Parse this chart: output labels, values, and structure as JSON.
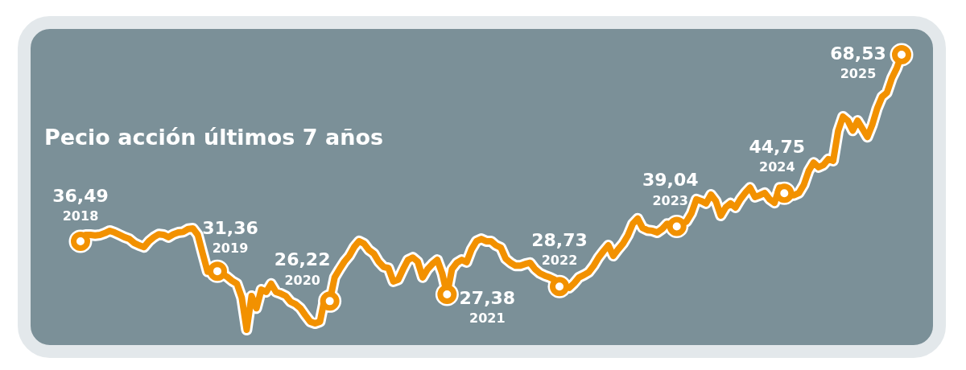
{
  "chart_data": {
    "type": "line",
    "title": "Pecio acción últimos 7 años",
    "tick_labels": false,
    "categories": [
      null,
      null,
      null,
      null,
      null,
      null,
      null,
      null,
      null,
      null,
      null,
      null,
      null,
      null,
      null,
      null,
      null,
      null,
      null,
      null,
      null,
      null,
      null,
      null,
      null,
      null,
      null,
      null,
      null,
      null,
      null,
      null,
      null,
      null,
      null,
      null,
      null,
      null,
      null,
      null,
      null,
      null,
      null,
      null,
      null,
      null,
      null,
      null,
      null,
      null,
      null,
      null,
      null,
      null,
      null,
      null,
      null,
      null,
      null,
      null,
      null,
      null,
      null,
      null,
      null,
      null,
      null,
      null,
      null,
      null,
      null,
      null,
      null,
      null,
      null,
      null,
      null,
      null,
      null,
      null,
      null,
      null,
      null,
      null,
      null,
      null,
      null,
      null,
      null,
      null,
      null,
      null,
      null,
      null,
      null,
      null,
      null,
      null,
      null,
      null,
      null,
      null,
      null,
      null,
      null,
      null,
      null,
      null,
      null,
      null,
      null,
      null,
      null,
      null,
      null,
      null,
      null,
      null,
      null,
      null,
      null,
      null,
      null,
      null,
      null,
      null,
      null,
      null,
      null,
      null,
      null,
      null,
      null,
      null,
      null,
      null,
      null,
      null,
      null,
      null,
      null,
      null,
      null,
      null,
      null,
      null,
      null,
      null,
      null,
      null,
      null,
      null,
      null,
      null,
      null,
      null,
      null,
      null,
      null,
      null,
      null,
      null,
      null,
      null,
      null,
      null,
      null,
      null,
      null
    ],
    "series": [
      {
        "color": "#f29100",
        "values": [
          36.49,
          37.6,
          37.6,
          37.5,
          37.6,
          37.9,
          38.3,
          38.0,
          37.6,
          37.2,
          36.9,
          36.2,
          35.8,
          35.5,
          36.5,
          37.2,
          37.7,
          37.6,
          37.2,
          37.7,
          38.0,
          38.1,
          38.6,
          38.7,
          37.6,
          34.4,
          31.3,
          31.9,
          31.36,
          30.9,
          30.4,
          29.7,
          29.2,
          26.8,
          21.3,
          27.1,
          25.0,
          28.2,
          27.8,
          29.2,
          27.8,
          27.5,
          27.1,
          26.1,
          25.7,
          25.0,
          23.8,
          22.7,
          22.4,
          22.7,
          26.8,
          26.22,
          30.3,
          31.7,
          33.0,
          34.0,
          35.5,
          36.5,
          36.1,
          35.0,
          34.4,
          33.0,
          32.1,
          31.9,
          29.6,
          29.9,
          31.7,
          33.3,
          33.7,
          33.0,
          30.3,
          31.7,
          32.6,
          33.3,
          31.0,
          27.38,
          31.7,
          32.8,
          33.3,
          32.9,
          35.1,
          36.5,
          36.9,
          36.5,
          36.5,
          35.8,
          35.4,
          33.5,
          32.8,
          32.3,
          32.3,
          32.6,
          32.8,
          31.7,
          31.0,
          30.6,
          30.3,
          29.9,
          28.73,
          28.9,
          28.5,
          29.3,
          30.3,
          30.7,
          31.2,
          32.3,
          33.7,
          34.8,
          35.8,
          34.0,
          35.1,
          36.1,
          37.5,
          39.5,
          40.4,
          38.8,
          38.4,
          38.3,
          38.0,
          38.6,
          39.5,
          39.3,
          39.04,
          39.5,
          39.9,
          41.3,
          43.7,
          43.4,
          43.0,
          44.5,
          43.4,
          40.9,
          42.3,
          43.0,
          42.3,
          43.7,
          44.8,
          45.7,
          44.1,
          44.4,
          44.8,
          43.7,
          43.1,
          45.7,
          44.75,
          44.4,
          44.4,
          44.8,
          46.2,
          48.6,
          50.0,
          49.2,
          49.6,
          50.6,
          50.3,
          55.4,
          57.9,
          57.2,
          55.5,
          57.2,
          55.8,
          54.4,
          56.5,
          59.3,
          61.3,
          62.0,
          64.5,
          66.2,
          68.53
        ],
        "value_labels": [
          "36,49",
          null,
          null,
          null,
          null,
          null,
          null,
          null,
          null,
          null,
          null,
          null,
          null,
          null,
          null,
          null,
          null,
          null,
          null,
          null,
          null,
          null,
          null,
          null,
          null,
          null,
          null,
          null,
          "31,36",
          null,
          null,
          null,
          null,
          null,
          null,
          null,
          null,
          null,
          null,
          null,
          null,
          null,
          null,
          null,
          null,
          null,
          null,
          null,
          null,
          null,
          null,
          "26,22",
          null,
          null,
          null,
          null,
          null,
          null,
          null,
          null,
          null,
          null,
          null,
          null,
          null,
          null,
          null,
          null,
          null,
          null,
          null,
          null,
          null,
          null,
          null,
          "27,38",
          null,
          null,
          null,
          null,
          null,
          null,
          null,
          null,
          null,
          null,
          null,
          null,
          null,
          null,
          null,
          null,
          null,
          null,
          null,
          null,
          null,
          null,
          "28,73",
          null,
          null,
          null,
          null,
          null,
          null,
          null,
          null,
          null,
          null,
          null,
          null,
          null,
          null,
          null,
          null,
          null,
          null,
          null,
          null,
          null,
          null,
          null,
          "39,04",
          null,
          null,
          null,
          null,
          null,
          null,
          null,
          null,
          null,
          null,
          null,
          null,
          null,
          null,
          null,
          null,
          null,
          null,
          null,
          null,
          null,
          "44,75",
          null,
          null,
          null,
          null,
          null,
          null,
          null,
          null,
          null,
          null,
          null,
          null,
          null,
          null,
          null,
          null,
          null,
          null,
          null,
          null,
          null,
          null,
          null,
          "68,53"
        ]
      }
    ],
    "annotations": [
      "2018",
      "2019",
      "2020",
      "2021",
      "2022",
      "2023",
      "2024",
      "2025"
    ]
  }
}
